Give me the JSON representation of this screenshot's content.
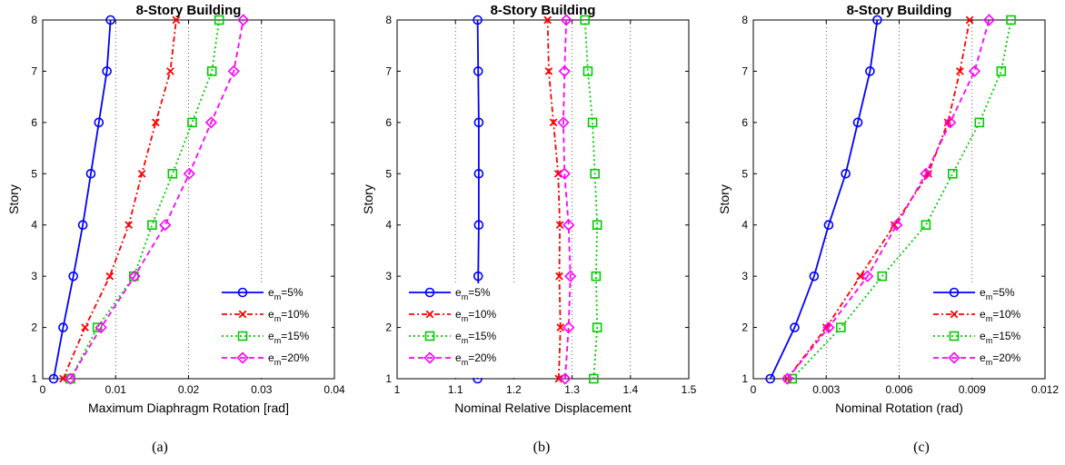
{
  "figure": {
    "captions": [
      "(a)",
      "(b)",
      "(c)"
    ]
  },
  "chart_data": [
    {
      "type": "line",
      "title": "8-Story Building",
      "xlabel": "Maximum Diaphragm Rotation [rad]",
      "ylabel": "Story",
      "xlim": [
        0,
        0.04
      ],
      "ylim": [
        1,
        8
      ],
      "xticks": [
        "0",
        "0.01",
        "0.02",
        "0.03",
        "0.04"
      ],
      "yticks": [
        "1",
        "2",
        "3",
        "4",
        "5",
        "6",
        "7",
        "8"
      ],
      "grid": true,
      "legend": "bottom-right",
      "y": [
        1,
        2,
        3,
        4,
        5,
        6,
        7,
        8
      ],
      "series": [
        {
          "name": "e_m=5%",
          "label_main": "e",
          "label_sub": "m",
          "label_rest": "=5%",
          "color": "#0000ff",
          "dash": "",
          "marker": "circle",
          "x": [
            0.0015,
            0.0028,
            0.0042,
            0.0055,
            0.0066,
            0.0077,
            0.0088,
            0.0093
          ]
        },
        {
          "name": "e_m=10%",
          "label_main": "e",
          "label_sub": "m",
          "label_rest": "=10%",
          "color": "#ff0000",
          "dash": "6,3,2,3",
          "marker": "x",
          "x": [
            0.0028,
            0.0058,
            0.0092,
            0.0118,
            0.0136,
            0.0155,
            0.0175,
            0.0183
          ]
        },
        {
          "name": "e_m=15%",
          "label_main": "e",
          "label_sub": "m",
          "label_rest": "=15%",
          "color": "#00cc00",
          "dash": "2,3",
          "marker": "square",
          "x": [
            0.0038,
            0.0075,
            0.0125,
            0.015,
            0.0178,
            0.0205,
            0.0232,
            0.0242
          ]
        },
        {
          "name": "e_m=20%",
          "label_main": "e",
          "label_sub": "m",
          "label_rest": "=20%",
          "color": "#ff00ff",
          "dash": "6,4",
          "marker": "diamond",
          "x": [
            0.0038,
            0.008,
            0.0126,
            0.0168,
            0.0201,
            0.0231,
            0.0262,
            0.0275
          ]
        }
      ]
    },
    {
      "type": "line",
      "title": "8-Story Building",
      "xlabel": "Nominal Relative Displacement",
      "ylabel": "Story",
      "xlim": [
        1,
        1.5
      ],
      "ylim": [
        1,
        8
      ],
      "xticks": [
        "1",
        "1.1",
        "1.2",
        "1.3",
        "1.4",
        "1.5"
      ],
      "yticks": [
        "1",
        "2",
        "3",
        "4",
        "5",
        "6",
        "7",
        "8"
      ],
      "grid": true,
      "legend": "bottom-left",
      "y": [
        1,
        2,
        3,
        4,
        5,
        6,
        7,
        8
      ],
      "series": [
        {
          "name": "e_m=5%",
          "label_main": "e",
          "label_sub": "m",
          "label_rest": "=5%",
          "color": "#0000ff",
          "dash": "",
          "marker": "circle",
          "x": [
            1.138,
            1.14,
            1.139,
            1.14,
            1.14,
            1.14,
            1.139,
            1.138
          ]
        },
        {
          "name": "e_m=10%",
          "label_main": "e",
          "label_sub": "m",
          "label_rest": "=10%",
          "color": "#ff0000",
          "dash": "6,3,2,3",
          "marker": "x",
          "x": [
            1.277,
            1.28,
            1.278,
            1.279,
            1.276,
            1.268,
            1.26,
            1.258
          ]
        },
        {
          "name": "e_m=15%",
          "label_main": "e",
          "label_sub": "m",
          "label_rest": "=15%",
          "color": "#00cc00",
          "dash": "2,3",
          "marker": "square",
          "x": [
            1.337,
            1.343,
            1.341,
            1.343,
            1.339,
            1.335,
            1.327,
            1.322
          ]
        },
        {
          "name": "e_m=20%",
          "label_main": "e",
          "label_sub": "m",
          "label_rest": "=20%",
          "color": "#ff00ff",
          "dash": "6,4",
          "marker": "diamond",
          "x": [
            1.288,
            1.294,
            1.297,
            1.294,
            1.287,
            1.285,
            1.287,
            1.29
          ]
        }
      ]
    },
    {
      "type": "line",
      "title": "8-Story Building",
      "xlabel": "Nominal Rotation (rad)",
      "ylabel": "Story",
      "xlim": [
        0,
        0.012
      ],
      "ylim": [
        1,
        8
      ],
      "xticks": [
        "0",
        "0.003",
        "0.006",
        "0.009",
        "0.012"
      ],
      "yticks": [
        "1",
        "2",
        "3",
        "4",
        "5",
        "6",
        "7",
        "8"
      ],
      "grid": true,
      "legend": "bottom-right",
      "y": [
        1,
        2,
        3,
        4,
        5,
        6,
        7,
        8
      ],
      "series": [
        {
          "name": "e_m=5%",
          "label_main": "e",
          "label_sub": "m",
          "label_rest": "=5%",
          "color": "#0000ff",
          "dash": "",
          "marker": "circle",
          "x": [
            0.0007,
            0.0017,
            0.0025,
            0.0031,
            0.0038,
            0.0043,
            0.0048,
            0.0051
          ]
        },
        {
          "name": "e_m=10%",
          "label_main": "e",
          "label_sub": "m",
          "label_rest": "=10%",
          "color": "#ff0000",
          "dash": "6,3,2,3",
          "marker": "x",
          "x": [
            0.0014,
            0.003,
            0.0044,
            0.0058,
            0.0072,
            0.008,
            0.0085,
            0.0089
          ]
        },
        {
          "name": "e_m=15%",
          "label_main": "e",
          "label_sub": "m",
          "label_rest": "=15%",
          "color": "#00cc00",
          "dash": "2,3",
          "marker": "square",
          "x": [
            0.0016,
            0.0036,
            0.0053,
            0.0071,
            0.0082,
            0.0093,
            0.0102,
            0.0106
          ]
        },
        {
          "name": "e_m=20%",
          "label_main": "e",
          "label_sub": "m",
          "label_rest": "=20%",
          "color": "#ff00ff",
          "dash": "6,4",
          "marker": "diamond",
          "x": [
            0.0014,
            0.0031,
            0.0047,
            0.0059,
            0.0071,
            0.0081,
            0.0091,
            0.0097
          ]
        }
      ]
    }
  ]
}
